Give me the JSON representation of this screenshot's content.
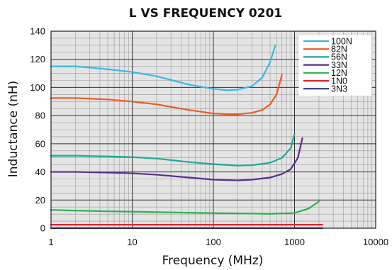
{
  "chart_data": {
    "type": "line",
    "title": "L VS FREQUENCY 0201",
    "xlabel": "Frequency (MHz)",
    "ylabel": "Inductance (nH)",
    "x_scale": "log",
    "xlim": [
      1,
      10000
    ],
    "ylim": [
      0,
      140
    ],
    "x_ticks": [
      1,
      10,
      100,
      1000,
      10000
    ],
    "x_tick_labels": [
      "1",
      "10",
      "100",
      "1000",
      "10000"
    ],
    "y_ticks": [
      0,
      20,
      40,
      60,
      80,
      100,
      120,
      140
    ],
    "y_tick_labels": [
      "0",
      "20",
      "40",
      "60",
      "80",
      "100",
      "120",
      "140"
    ],
    "grid": true,
    "legend_position": "top-right",
    "series": [
      {
        "name": "100N",
        "color": "#3db6e6",
        "x": [
          1,
          2,
          5,
          10,
          20,
          50,
          100,
          150,
          200,
          300,
          400,
          500,
          580
        ],
        "y": [
          115,
          115,
          113,
          111,
          108,
          102,
          99,
          98,
          98.5,
          101,
          107,
          118,
          130
        ]
      },
      {
        "name": "82N",
        "color": "#ee5a24",
        "x": [
          1,
          2,
          5,
          10,
          20,
          50,
          100,
          150,
          200,
          300,
          400,
          500,
          600,
          700
        ],
        "y": [
          92.5,
          92.5,
          91.5,
          90,
          88,
          84,
          81.5,
          81,
          81,
          82,
          84,
          88,
          95,
          109
        ]
      },
      {
        "name": "56N",
        "color": "#1aa99a",
        "x": [
          1,
          2,
          5,
          10,
          20,
          50,
          100,
          200,
          300,
          500,
          700,
          900,
          1000
        ],
        "y": [
          51.5,
          51.5,
          51,
          50.5,
          49.5,
          47,
          45.5,
          44.5,
          44.8,
          46.5,
          50,
          57,
          67
        ]
      },
      {
        "name": "33N",
        "color": "#5a2d8c",
        "x": [
          1,
          2,
          5,
          10,
          20,
          50,
          100,
          200,
          300,
          500,
          700,
          900,
          1100,
          1250
        ],
        "y": [
          40,
          40,
          39.5,
          39,
          38,
          36,
          34.5,
          34,
          34.5,
          36,
          38.5,
          42,
          50,
          64
        ]
      },
      {
        "name": "12N",
        "color": "#2bb24c",
        "x": [
          1,
          2,
          5,
          10,
          20,
          50,
          100,
          200,
          500,
          1000,
          1500,
          2000
        ],
        "y": [
          13,
          12.5,
          12,
          11.7,
          11.4,
          11,
          10.7,
          10.5,
          10.2,
          10.8,
          14,
          19
        ]
      },
      {
        "name": "1N0",
        "color": "#e5202a",
        "x": [
          1,
          2200
        ],
        "y": [
          2.5,
          2.5
        ]
      },
      {
        "name": "3N3",
        "color": "#2e3a8c",
        "x": [
          1,
          2200
        ],
        "y": [
          0,
          0
        ]
      }
    ]
  }
}
